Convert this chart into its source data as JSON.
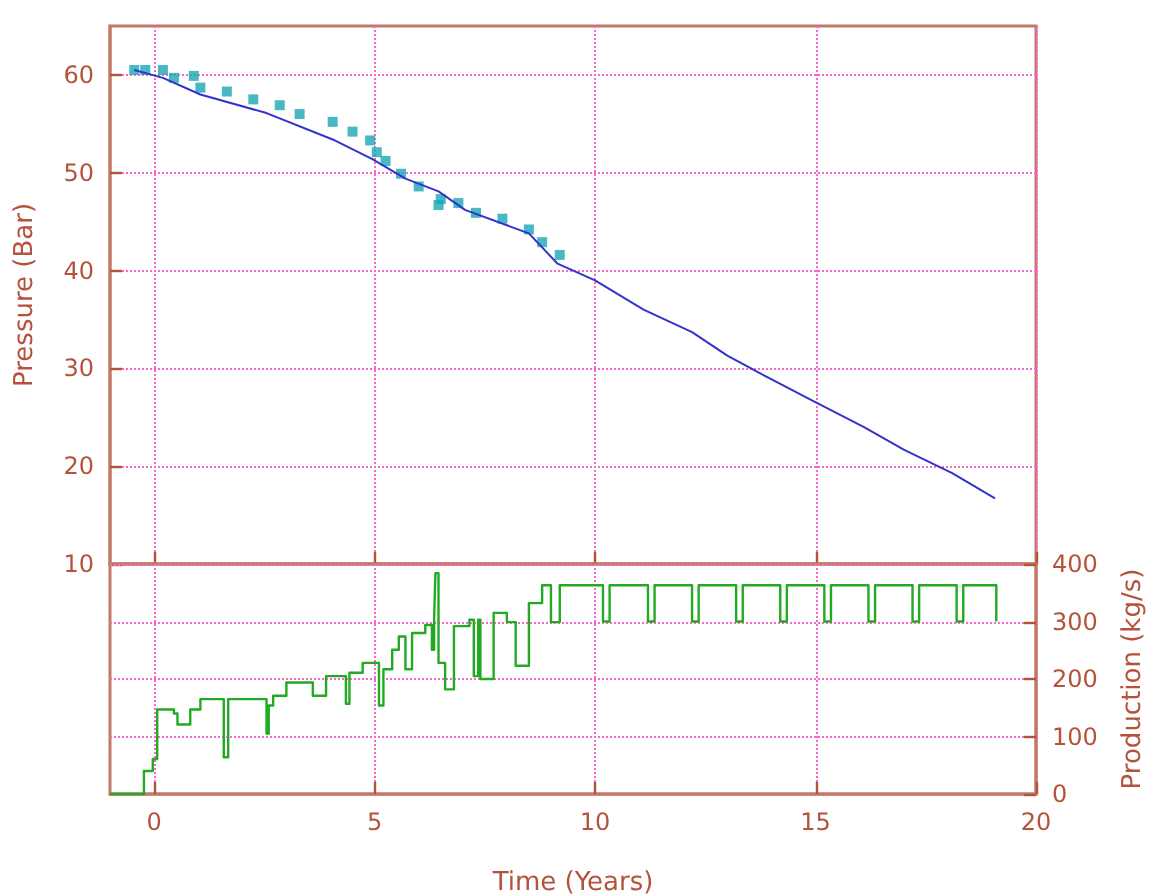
{
  "chart_data": [
    {
      "type": "line",
      "ylabel": "Pressure (Bar)",
      "xlim": [
        -1,
        20
      ],
      "ylim": [
        10,
        65
      ],
      "xticks": [
        0,
        5,
        10,
        15,
        20
      ],
      "yticks": [
        10,
        20,
        30,
        40,
        50,
        60
      ],
      "tick_labels": "y",
      "grid": true,
      "series": [
        {
          "type": "scatter",
          "marker": "square",
          "color": "#1aa6b7",
          "x": [
            -0.45,
            -0.2,
            0.2,
            0.45,
            0.9,
            1.05,
            1.65,
            2.25,
            2.85,
            3.3,
            4.05,
            4.5,
            4.9,
            5.05,
            5.25,
            5.6,
            6.0,
            6.45,
            6.5,
            6.9,
            7.3,
            7.9,
            8.5,
            8.8,
            9.2
          ],
          "values": [
            60.5,
            60.5,
            60.5,
            59.7,
            59.9,
            58.7,
            58.3,
            57.5,
            56.9,
            56.0,
            55.2,
            54.2,
            53.3,
            52.1,
            51.2,
            49.9,
            48.6,
            46.7,
            47.3,
            46.9,
            45.9,
            45.3,
            44.2,
            42.9,
            41.6
          ]
        },
        {
          "type": "line",
          "marker": "none",
          "color": "#3333cc",
          "x": [
            -0.45,
            0.2,
            1.05,
            2.55,
            4.05,
            4.95,
            5.7,
            6.45,
            7.05,
            8.5,
            9.15,
            10.0,
            11.1,
            12.2,
            13.0,
            13.95,
            14.93,
            16.1,
            17.0,
            18.1,
            19.07
          ],
          "values": [
            60.5,
            59.7,
            58.0,
            56.1,
            53.4,
            51.4,
            49.4,
            48.1,
            46.2,
            43.8,
            40.7,
            39.0,
            36.0,
            33.7,
            31.3,
            29.0,
            26.7,
            24.0,
            21.7,
            19.3,
            16.7
          ]
        }
      ]
    },
    {
      "type": "step",
      "xlabel": "Time (Years)",
      "y2label": "Production (kg/s)",
      "xlim": [
        -1,
        20
      ],
      "y2lim": [
        0,
        400
      ],
      "xticks": [
        0,
        5,
        10,
        15,
        20
      ],
      "y2ticks": [
        0,
        100,
        200,
        300,
        400
      ],
      "grid": true,
      "series": [
        {
          "axis": "y2",
          "color": "#22aa22",
          "x": [
            -1.0,
            -0.45,
            -0.23,
            -0.03,
            0.07,
            0.45,
            0.53,
            0.82,
            1.05,
            1.58,
            1.68,
            2.55,
            2.6,
            2.7,
            3.0,
            3.6,
            3.9,
            4.35,
            4.43,
            4.73,
            5.1,
            5.2,
            5.4,
            5.55,
            5.7,
            5.85,
            6.15,
            6.3,
            6.35,
            6.38,
            6.45,
            6.6,
            6.8,
            7.15,
            7.25,
            7.35,
            7.4,
            7.7,
            8.0,
            8.2,
            8.5,
            8.8,
            9.0,
            9.2,
            10.18,
            10.33,
            11.2,
            11.35,
            12.2,
            12.35,
            13.2,
            13.35,
            14.2,
            14.35,
            15.2,
            15.35,
            16.2,
            16.35,
            17.2,
            17.35,
            18.2,
            18.35,
            19.1
          ],
          "values": [
            0,
            0,
            40,
            61,
            147,
            140,
            121,
            147,
            165,
            64,
            165,
            105,
            154,
            171,
            194,
            171,
            205,
            157,
            211,
            228,
            154,
            217,
            251,
            274,
            217,
            280,
            294,
            251,
            306,
            384,
            228,
            182,
            292,
            303,
            205,
            303,
            200,
            315,
            299,
            223,
            332,
            363,
            299,
            363,
            300,
            363,
            300,
            363,
            300,
            363,
            300,
            363,
            300,
            363,
            300,
            363,
            300,
            363,
            300,
            363,
            300,
            363,
            300
          ]
        }
      ]
    }
  ]
}
